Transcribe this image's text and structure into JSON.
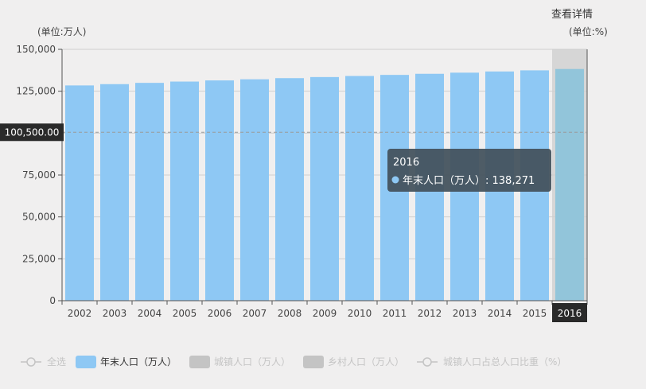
{
  "header": {
    "left_unit": "(单位:万人)",
    "right_unit": "(单位:%)",
    "detail_link": "查看详情"
  },
  "axis_pointer": {
    "y_value_label": "100,500.00",
    "x_value_label": "2016"
  },
  "tooltip": {
    "title": "2016",
    "series_text": "年末人口（万人）: 138,271"
  },
  "legend": {
    "items": [
      {
        "label": "全选",
        "style": "line",
        "active": false
      },
      {
        "label": "年末人口（万人）",
        "style": "rect",
        "active": true
      },
      {
        "label": "城镇人口（万人）",
        "style": "rect",
        "active": false
      },
      {
        "label": "乡村人口（万人）",
        "style": "rect",
        "active": false
      },
      {
        "label": "城镇人口占总人口比重（%）",
        "style": "line",
        "active": false
      }
    ]
  },
  "colors": {
    "bar": "#8ec8f4",
    "bar_highlight": "#92c5da",
    "highlight_band": "#d6d6d6",
    "tooltip_bg": "#45535e",
    "pointer_label_bg": "#2a2a2a",
    "legend_inactive": "#c4c4c4",
    "grid": "#cfcfcf"
  },
  "chart_data": {
    "type": "bar",
    "categories": [
      "2002",
      "2003",
      "2004",
      "2005",
      "2006",
      "2007",
      "2008",
      "2009",
      "2010",
      "2011",
      "2012",
      "2013",
      "2014",
      "2015",
      "2016"
    ],
    "series": [
      {
        "name": "年末人口（万人）",
        "values": [
          128453,
          129227,
          129988,
          130756,
          131448,
          132129,
          132802,
          133450,
          134091,
          134735,
          135404,
          136072,
          136782,
          137462,
          138271
        ]
      }
    ],
    "ylim": [
      0,
      150000
    ],
    "yticks": [
      "0",
      "25,000",
      "50,000",
      "75,000",
      "100,000",
      "125,000",
      "150,000"
    ],
    "ytick_values": [
      0,
      25000,
      50000,
      75000,
      100000,
      125000,
      150000
    ],
    "highlighted_category": "2016",
    "pointer_value": 100500,
    "grid": true,
    "legend_position": "bottom-left"
  }
}
